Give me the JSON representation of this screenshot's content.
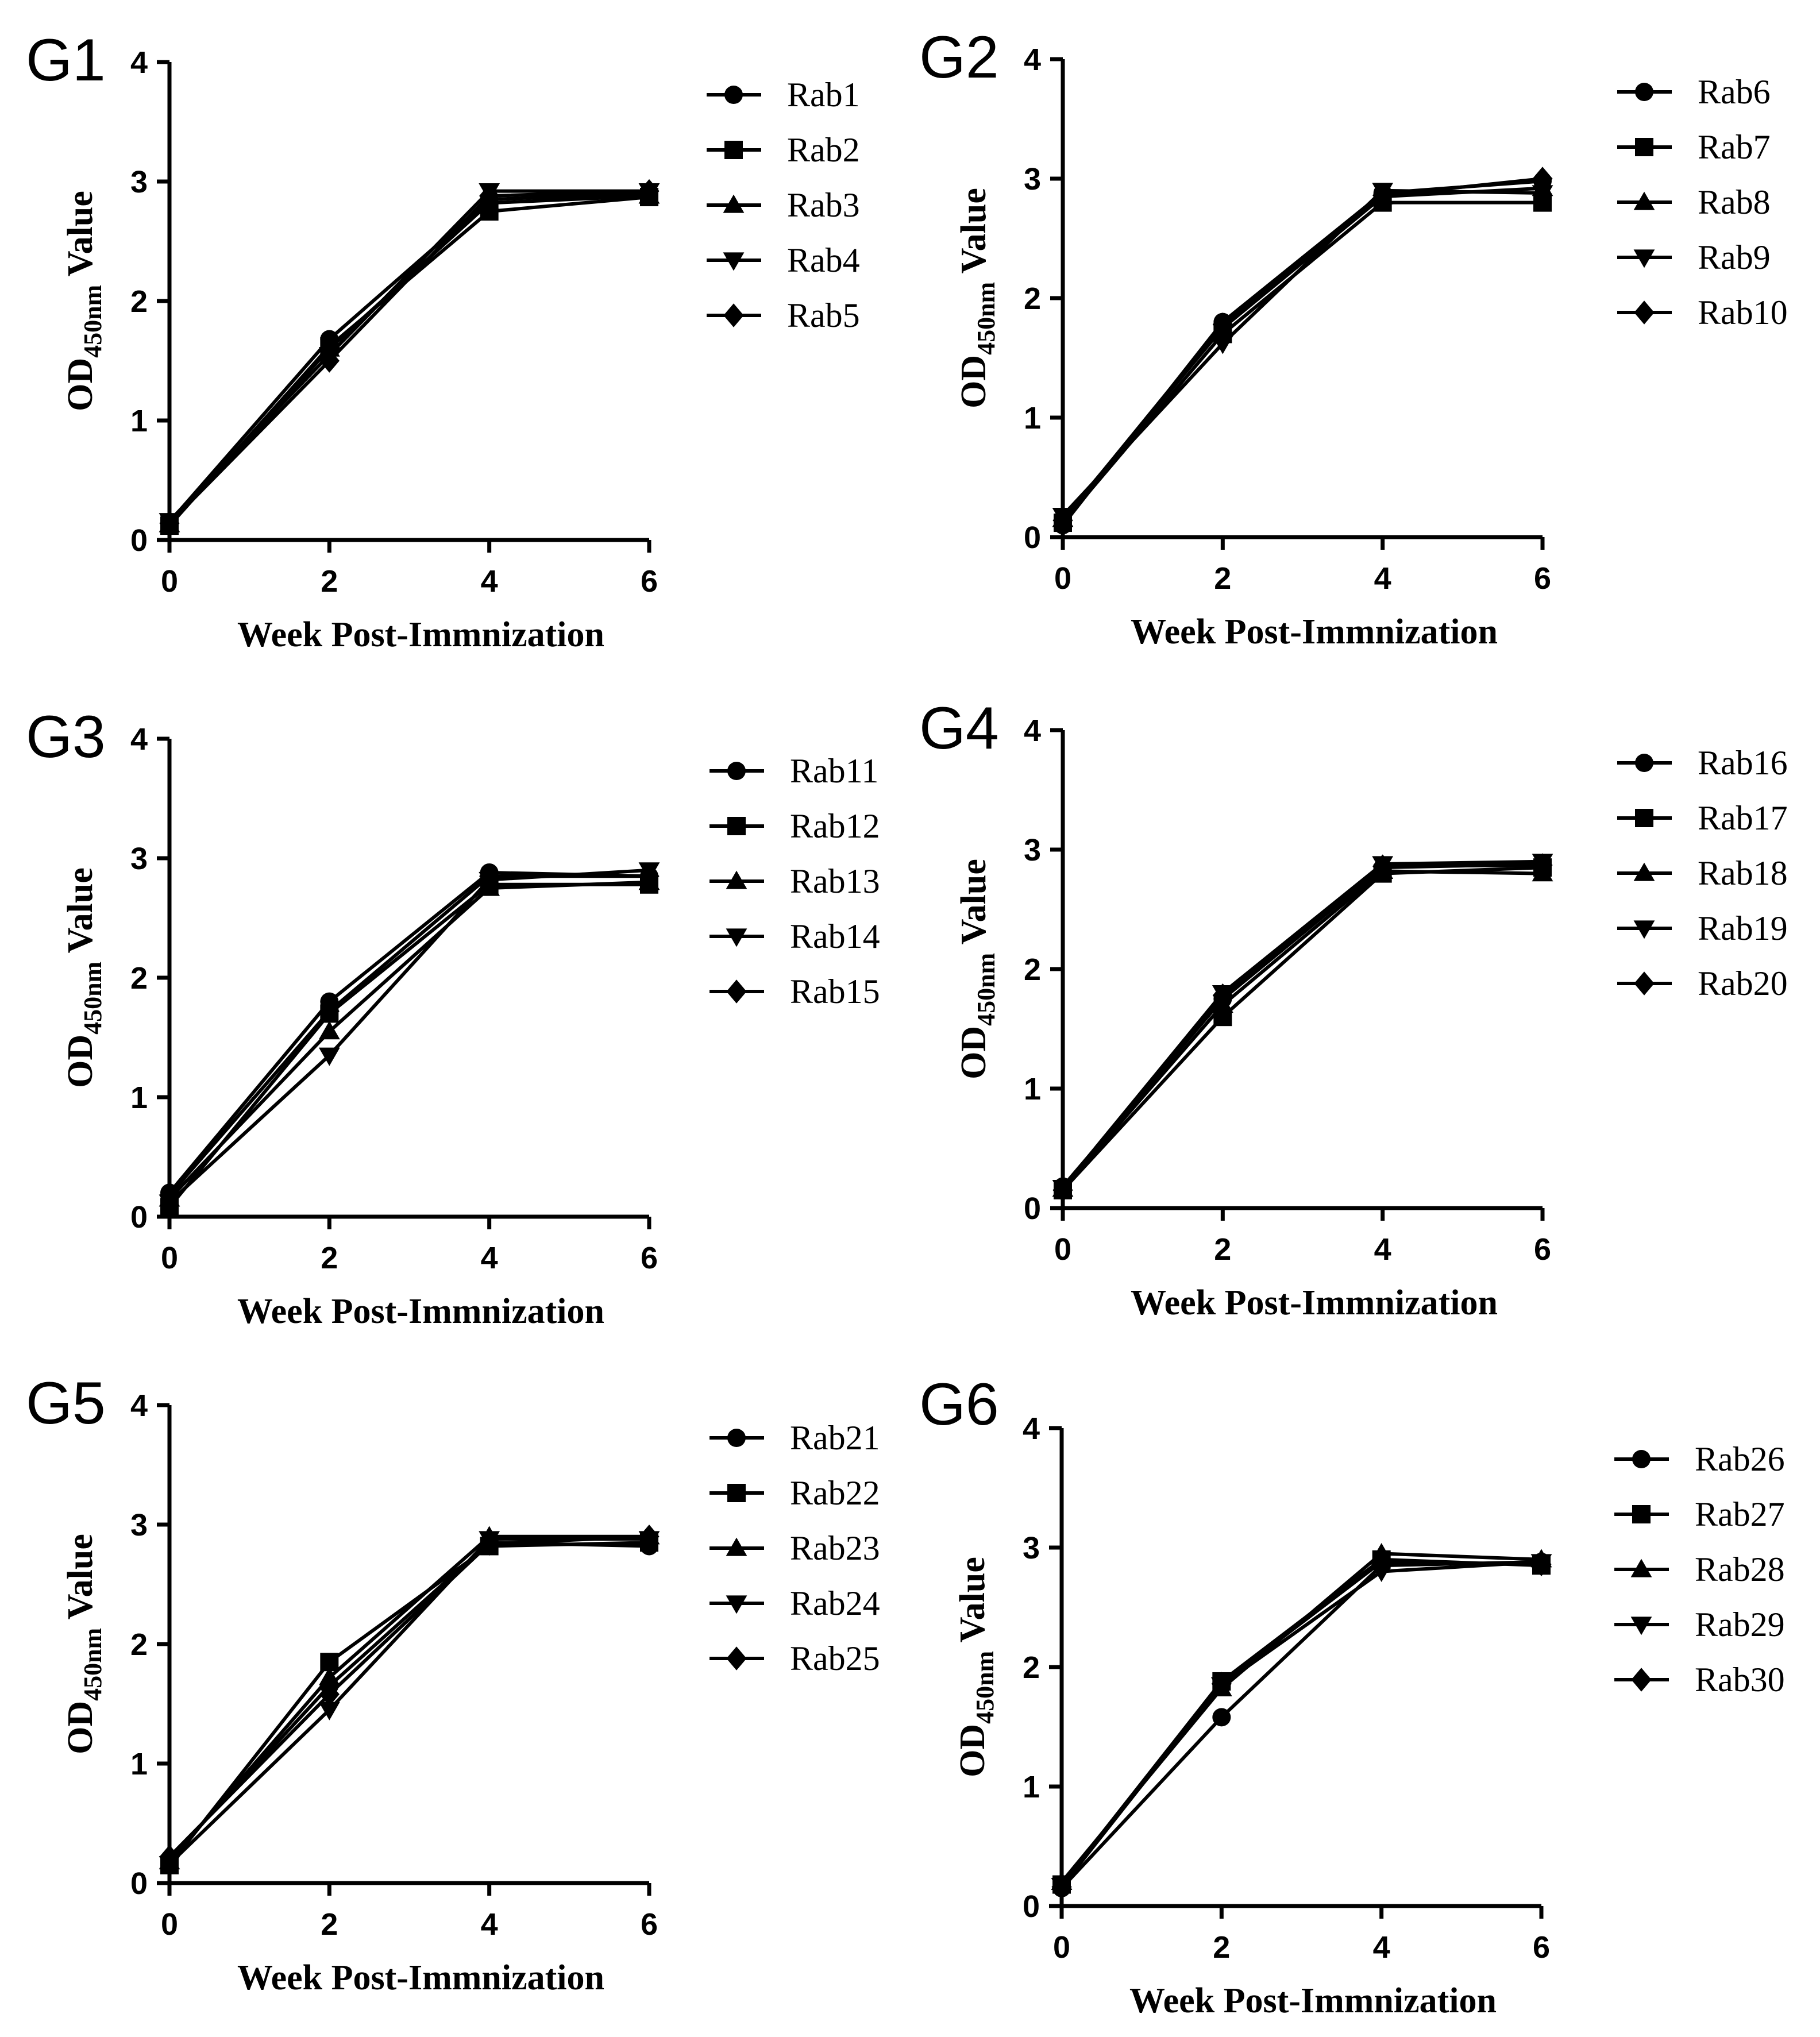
{
  "chart_data": [
    {
      "type": "line",
      "panel_label": "G1",
      "xlabel": "Week Post-Immnization",
      "ylabel": "OD450nm Value",
      "ylabel_main": "OD",
      "ylabel_sub": "450nm",
      "ylabel_rest": " Value",
      "x": [
        0,
        2,
        4,
        6
      ],
      "x_ticks": [
        "0",
        "2",
        "4",
        "6"
      ],
      "y_ticks": [
        "0",
        "1",
        "2",
        "3",
        "4"
      ],
      "xlim": [
        0,
        6
      ],
      "ylim": [
        0,
        4
      ],
      "grid": false,
      "legend_position": "right",
      "series": [
        {
          "name": "Rab1",
          "marker": "circle",
          "values": [
            0.15,
            1.68,
            2.85,
            2.9
          ]
        },
        {
          "name": "Rab2",
          "marker": "square",
          "values": [
            0.12,
            1.62,
            2.75,
            2.87
          ]
        },
        {
          "name": "Rab3",
          "marker": "triangle-up",
          "values": [
            0.13,
            1.6,
            2.82,
            2.88
          ]
        },
        {
          "name": "Rab4",
          "marker": "triangle-down",
          "values": [
            0.16,
            1.55,
            2.92,
            2.92
          ]
        },
        {
          "name": "Rab5",
          "marker": "diamond",
          "values": [
            0.14,
            1.5,
            2.88,
            2.92
          ]
        }
      ]
    },
    {
      "type": "line",
      "panel_label": "G2",
      "xlabel": "Week Post-Immnization",
      "ylabel": "OD450nm Value",
      "ylabel_main": "OD",
      "ylabel_sub": "450nm",
      "ylabel_rest": " Value",
      "x": [
        0,
        2,
        4,
        6
      ],
      "x_ticks": [
        "0",
        "2",
        "4",
        "6"
      ],
      "y_ticks": [
        "0",
        "1",
        "2",
        "3",
        "4"
      ],
      "xlim": [
        0,
        6
      ],
      "ylim": [
        0,
        4
      ],
      "grid": false,
      "legend_position": "right",
      "series": [
        {
          "name": "Rab6",
          "marker": "circle",
          "values": [
            0.1,
            1.8,
            2.88,
            2.98
          ]
        },
        {
          "name": "Rab7",
          "marker": "square",
          "values": [
            0.12,
            1.7,
            2.8,
            2.8
          ]
        },
        {
          "name": "Rab8",
          "marker": "triangle-up",
          "values": [
            0.15,
            1.75,
            2.85,
            2.92
          ]
        },
        {
          "name": "Rab9",
          "marker": "triangle-down",
          "values": [
            0.18,
            1.62,
            2.9,
            2.88
          ]
        },
        {
          "name": "Rab10",
          "marker": "diamond",
          "values": [
            0.14,
            1.78,
            2.86,
            3.0
          ]
        }
      ]
    },
    {
      "type": "line",
      "panel_label": "G3",
      "xlabel": "Week Post-Immnization",
      "ylabel": "OD450nm Value",
      "ylabel_main": "OD",
      "ylabel_sub": "450nm",
      "ylabel_rest": " Value",
      "x": [
        0,
        2,
        4,
        6
      ],
      "x_ticks": [
        "0",
        "2",
        "4",
        "6"
      ],
      "y_ticks": [
        "0",
        "1",
        "2",
        "3",
        "4"
      ],
      "xlim": [
        0,
        6
      ],
      "ylim": [
        0,
        4
      ],
      "grid": false,
      "legend_position": "right",
      "series": [
        {
          "name": "Rab11",
          "marker": "circle",
          "values": [
            0.2,
            1.8,
            2.88,
            2.85
          ]
        },
        {
          "name": "Rab12",
          "marker": "square",
          "values": [
            0.08,
            1.7,
            2.78,
            2.78
          ]
        },
        {
          "name": "Rab13",
          "marker": "triangle-up",
          "values": [
            0.15,
            1.55,
            2.75,
            2.8
          ]
        },
        {
          "name": "Rab14",
          "marker": "triangle-down",
          "values": [
            0.12,
            1.35,
            2.82,
            2.9
          ]
        },
        {
          "name": "Rab15",
          "marker": "diamond",
          "values": [
            0.18,
            1.72,
            2.85,
            2.85
          ]
        }
      ]
    },
    {
      "type": "line",
      "panel_label": "G4",
      "xlabel": "Week Post-Immnization",
      "ylabel": "OD450nm Value",
      "ylabel_main": "OD",
      "ylabel_sub": "450nm",
      "ylabel_rest": " Value",
      "x": [
        0,
        2,
        4,
        6
      ],
      "x_ticks": [
        "0",
        "2",
        "4",
        "6"
      ],
      "y_ticks": [
        "0",
        "1",
        "2",
        "3",
        "4"
      ],
      "xlim": [
        0,
        6
      ],
      "ylim": [
        0,
        4
      ],
      "grid": false,
      "legend_position": "right",
      "series": [
        {
          "name": "Rab16",
          "marker": "circle",
          "values": [
            0.18,
            1.75,
            2.85,
            2.88
          ]
        },
        {
          "name": "Rab17",
          "marker": "square",
          "values": [
            0.15,
            1.6,
            2.8,
            2.85
          ]
        },
        {
          "name": "Rab18",
          "marker": "triangle-up",
          "values": [
            0.16,
            1.7,
            2.82,
            2.8
          ]
        },
        {
          "name": "Rab19",
          "marker": "triangle-down",
          "values": [
            0.17,
            1.8,
            2.88,
            2.9
          ]
        },
        {
          "name": "Rab20",
          "marker": "diamond",
          "values": [
            0.15,
            1.78,
            2.86,
            2.87
          ]
        }
      ]
    },
    {
      "type": "line",
      "panel_label": "G5",
      "xlabel": "Week Post-Immnization",
      "ylabel": "OD450nm Value",
      "ylabel_main": "OD",
      "ylabel_sub": "450nm",
      "ylabel_rest": " Value",
      "x": [
        0,
        2,
        4,
        6
      ],
      "x_ticks": [
        "0",
        "2",
        "4",
        "6"
      ],
      "y_ticks": [
        "0",
        "1",
        "2",
        "3",
        "4"
      ],
      "xlim": [
        0,
        6
      ],
      "ylim": [
        0,
        4
      ],
      "grid": false,
      "legend_position": "right",
      "series": [
        {
          "name": "Rab21",
          "marker": "circle",
          "values": [
            0.2,
            1.65,
            2.85,
            2.82
          ]
        },
        {
          "name": "Rab22",
          "marker": "square",
          "values": [
            0.15,
            1.85,
            2.82,
            2.85
          ]
        },
        {
          "name": "Rab23",
          "marker": "triangle-up",
          "values": [
            0.18,
            1.72,
            2.9,
            2.9
          ]
        },
        {
          "name": "Rab24",
          "marker": "triangle-down",
          "values": [
            0.16,
            1.45,
            2.88,
            2.88
          ]
        },
        {
          "name": "Rab25",
          "marker": "diamond",
          "values": [
            0.22,
            1.58,
            2.84,
            2.9
          ]
        }
      ]
    },
    {
      "type": "line",
      "panel_label": "G6",
      "xlabel": "Week Post-Immnization",
      "ylabel": "OD450nm Value",
      "ylabel_main": "OD",
      "ylabel_sub": "450nm",
      "ylabel_rest": " Value",
      "x": [
        0,
        2,
        4,
        6
      ],
      "x_ticks": [
        "0",
        "2",
        "4",
        "6"
      ],
      "y_ticks": [
        "0",
        "1",
        "2",
        "3",
        "4"
      ],
      "xlim": [
        0,
        6
      ],
      "ylim": [
        0,
        4
      ],
      "grid": false,
      "legend_position": "right",
      "series": [
        {
          "name": "Rab26",
          "marker": "circle",
          "values": [
            0.15,
            1.58,
            2.85,
            2.88
          ]
        },
        {
          "name": "Rab27",
          "marker": "square",
          "values": [
            0.18,
            1.88,
            2.9,
            2.85
          ]
        },
        {
          "name": "Rab28",
          "marker": "triangle-up",
          "values": [
            0.2,
            1.82,
            2.95,
            2.9
          ]
        },
        {
          "name": "Rab29",
          "marker": "triangle-down",
          "values": [
            0.17,
            1.85,
            2.8,
            2.88
          ]
        },
        {
          "name": "Rab30",
          "marker": "diamond",
          "values": [
            0.16,
            1.86,
            2.88,
            2.86
          ]
        }
      ]
    }
  ]
}
